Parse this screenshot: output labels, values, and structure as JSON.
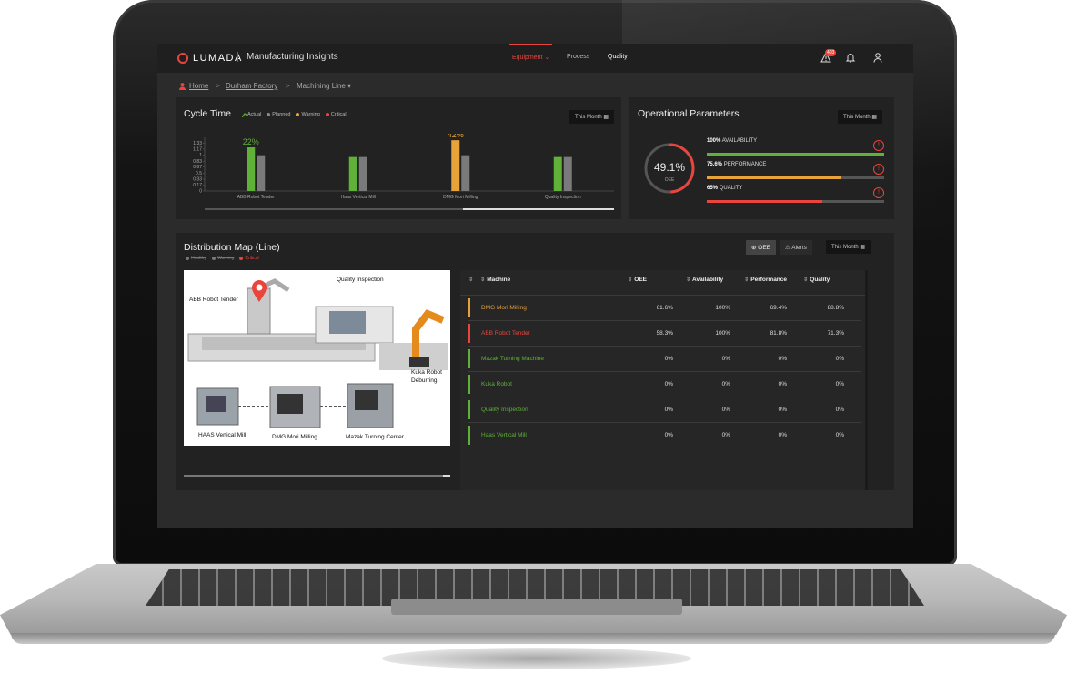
{
  "header": {
    "logo": "LUMADA",
    "app_title": "Manufacturing Insights",
    "nav": [
      {
        "label": "Equipment ⌄",
        "active": true
      },
      {
        "label": "Process",
        "active": false
      },
      {
        "label": "Quality",
        "active": false
      }
    ],
    "alert_count": "403"
  },
  "breadcrumb": {
    "home": "Home",
    "factory": "Durham Factory",
    "line": "Machining Line ▾"
  },
  "cycle_time": {
    "title": "Cycle Time",
    "period_button": "This Month",
    "legend": [
      {
        "label": "Actual",
        "color": "#5fb137"
      },
      {
        "label": "Planned",
        "color": "#8a8a8a"
      },
      {
        "label": "Warning",
        "color": "#e8a23a"
      },
      {
        "label": "Critical",
        "color": "#e9453c"
      }
    ]
  },
  "chart_data": {
    "type": "bar",
    "categories": [
      "ABB Robot Tender",
      "Haas Vertical Mill",
      "DMG Mori Milling",
      "Quality Inspection"
    ],
    "series": [
      {
        "name": "Actual",
        "values": [
          1.22,
          0.95,
          1.42,
          0.95
        ]
      },
      {
        "name": "Planned",
        "values": [
          1.0,
          0.95,
          1.0,
          0.95
        ]
      }
    ],
    "bar_colors": [
      "#5fb137",
      "#5fb137",
      "#e8a23a",
      "#5fb137"
    ],
    "data_labels": [
      "22%",
      "",
      "42%",
      ""
    ],
    "yticks": [
      "0",
      "0.17",
      "0.33",
      "0.5",
      "0.67",
      "0.83",
      "1",
      "1.17",
      "1.33"
    ],
    "ylim": [
      0,
      1.5
    ]
  },
  "operational": {
    "title": "Operational Parameters",
    "period_button": "This Month",
    "oee_value": "49.1%",
    "oee_label": "OEE",
    "oee_fraction": 0.491,
    "metrics": [
      {
        "pct": "100%",
        "label": "AVAILABILITY",
        "fraction": 1.0,
        "color": "#5fb137"
      },
      {
        "pct": "75.6%",
        "label": "PERFORMANCE",
        "fraction": 0.756,
        "color": "#e8a23a"
      },
      {
        "pct": "65%",
        "label": "QUALITY",
        "fraction": 0.65,
        "color": "#e9453c"
      }
    ]
  },
  "distribution": {
    "title": "Distribution Map (Line)",
    "legend": [
      "Healthy",
      "Warning",
      "Critical"
    ],
    "oee_button": "OEE",
    "alerts_button": "Alerts",
    "period_button": "This Month",
    "map_labels": {
      "abb": "ABB Robot Tender",
      "quality": "Quality Inspection",
      "kuka": "Kuka Robot Deburring",
      "haas": "HAAS Vertical Mill",
      "dmg": "DMG Mori Milling",
      "mazak": "Mazak Turning Center"
    }
  },
  "table": {
    "columns": [
      "Machine",
      "OEE",
      "Availability",
      "Performance",
      "Quality"
    ],
    "rows": [
      {
        "machine": "DMG Mori Milling",
        "color": "#e8a23a",
        "oee": "61.6%",
        "availability": "100%",
        "performance": "69.4%",
        "quality": "88.8%"
      },
      {
        "machine": "ABB Robot Tender",
        "color": "#e9453c",
        "oee": "58.3%",
        "availability": "100%",
        "performance": "81.8%",
        "quality": "71.3%"
      },
      {
        "machine": "Mazak Turning Machine",
        "color": "#5fb137",
        "oee": "0%",
        "availability": "0%",
        "performance": "0%",
        "quality": "0%"
      },
      {
        "machine": "Kuka Robot",
        "color": "#5fb137",
        "oee": "0%",
        "availability": "0%",
        "performance": "0%",
        "quality": "0%"
      },
      {
        "machine": "Quality Inspection",
        "color": "#5fb137",
        "oee": "0%",
        "availability": "0%",
        "performance": "0%",
        "quality": "0%"
      },
      {
        "machine": "Haas Vertical Mill",
        "color": "#5fb137",
        "oee": "0%",
        "availability": "0%",
        "performance": "0%",
        "quality": "0%"
      }
    ]
  }
}
